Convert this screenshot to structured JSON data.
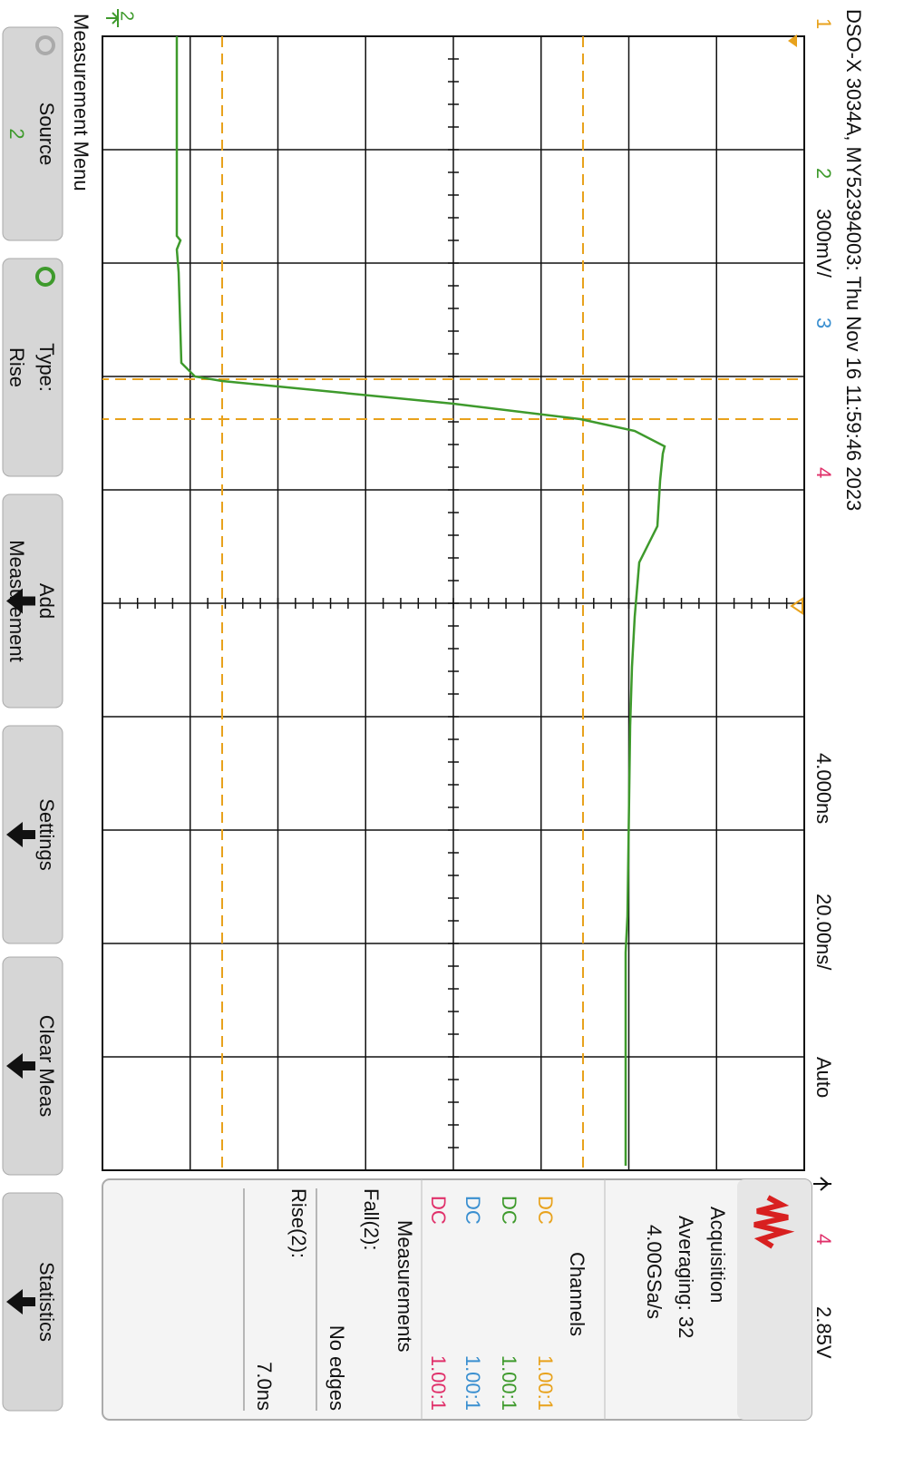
{
  "header": {
    "title": "DSO-X 3034A, MY52394003: Thu Nov 16 11:59:46 2023",
    "channels": [
      "1",
      "2",
      "3",
      "4"
    ],
    "scale": "300mV/"
  },
  "ground_marker": "2",
  "timebase": {
    "delay": "4.000ns",
    "scale": "20.00ns/",
    "mode": "Auto"
  },
  "trigger": {
    "source": "4",
    "level": "2.85V"
  },
  "acquisition": {
    "title": "Acquisition",
    "mode": "Averaging: 32",
    "rate": "4.00GSa/s"
  },
  "channels": {
    "title": "Channels",
    "rows": [
      {
        "coupling": "DC",
        "probe": "1.00:1"
      },
      {
        "coupling": "DC",
        "probe": "1.00:1"
      },
      {
        "coupling": "DC",
        "probe": "1.00:1"
      },
      {
        "coupling": "DC",
        "probe": "1.00:1"
      }
    ]
  },
  "measurements": {
    "title": "Measurements",
    "items": [
      {
        "label": "Fall(2):",
        "value": "No edges"
      },
      {
        "label": "Rise(2):",
        "value": "7.0ns"
      }
    ]
  },
  "menu": {
    "title": "Measurement Menu",
    "softkeys": [
      [
        "Source",
        "2"
      ],
      [
        "Type:",
        "Rise"
      ],
      [
        "Add",
        "Measurement"
      ],
      [
        "Settings"
      ],
      [
        "Clear Meas"
      ],
      [
        "Statistics"
      ]
    ]
  }
}
